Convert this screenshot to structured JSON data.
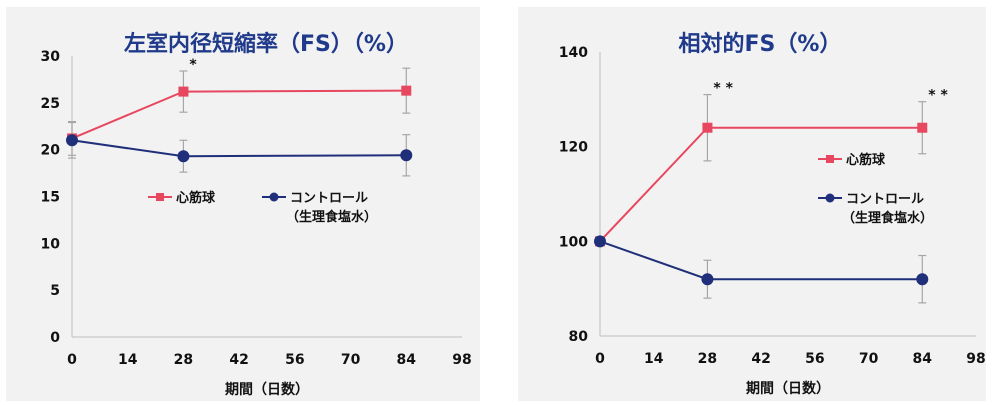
{
  "colors": {
    "cardiac": "#e8485f",
    "control": "#1f2f7a",
    "title": "#1f3a8a",
    "errorbar": "#a6a6a6"
  },
  "chart_data": [
    {
      "type": "line",
      "title": "左室内径短縮率（FS）（%）",
      "xlabel": "期間（日数）",
      "ylabel": "",
      "xlim": [
        0,
        98
      ],
      "ylim": [
        0,
        30
      ],
      "xticks": [
        0,
        14,
        28,
        42,
        56,
        70,
        84,
        98
      ],
      "yticks": [
        0,
        5,
        10,
        15,
        20,
        25,
        30
      ],
      "x": [
        0,
        28,
        84
      ],
      "series": [
        {
          "name": "心筋球",
          "marker": "square",
          "color": "#e8485f",
          "values": [
            21.2,
            26.2,
            26.3
          ],
          "errors": [
            1.8,
            2.2,
            2.4
          ]
        },
        {
          "name": "コントロール",
          "name_line2": "（生理食塩水）",
          "marker": "circle",
          "color": "#1f2f7a",
          "values": [
            21.0,
            19.3,
            19.4
          ],
          "errors": [
            1.9,
            1.7,
            2.2
          ]
        }
      ],
      "annotations": [
        {
          "x": 28,
          "text": "*"
        }
      ],
      "grid": false,
      "legend": "center"
    },
    {
      "type": "line",
      "title": "相対的FS（%）",
      "xlabel": "期間（日数）",
      "ylabel": "",
      "xlim": [
        0,
        98
      ],
      "ylim": [
        80,
        140
      ],
      "xticks": [
        0,
        14,
        28,
        42,
        56,
        70,
        84,
        98
      ],
      "yticks": [
        80,
        100,
        120,
        140
      ],
      "x": [
        0,
        28,
        84
      ],
      "series": [
        {
          "name": "心筋球",
          "marker": "square",
          "color": "#e8485f",
          "values": [
            100,
            124,
            124
          ],
          "errors": [
            0,
            7,
            5.5
          ]
        },
        {
          "name": "コントロール",
          "name_line2": "（生理食塩水）",
          "marker": "circle",
          "color": "#1f2f7a",
          "values": [
            100,
            92,
            92
          ],
          "errors": [
            0,
            4,
            5
          ]
        }
      ],
      "annotations": [
        {
          "x": 28,
          "text": "* *"
        },
        {
          "x": 84,
          "text": "* *"
        }
      ],
      "grid": false,
      "legend": "right"
    }
  ]
}
